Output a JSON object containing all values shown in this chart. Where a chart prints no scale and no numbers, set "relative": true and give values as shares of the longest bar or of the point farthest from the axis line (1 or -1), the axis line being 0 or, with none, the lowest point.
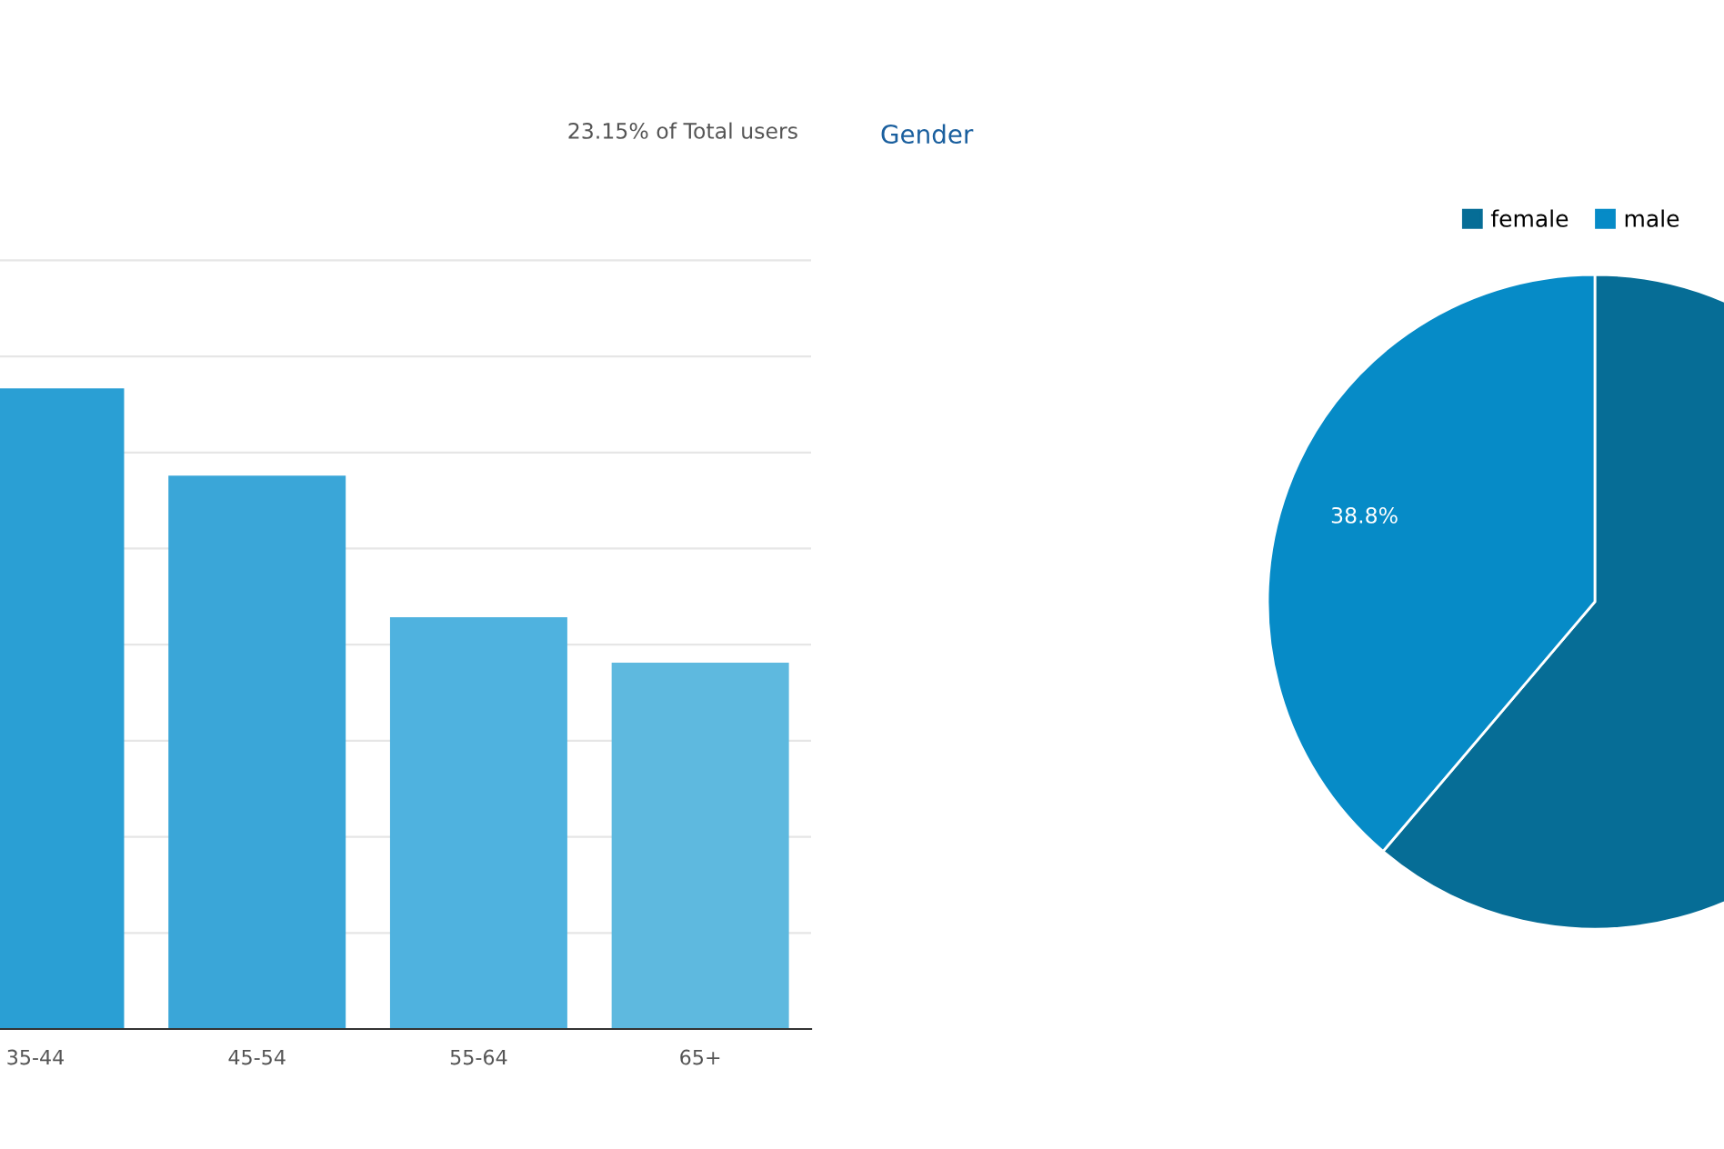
{
  "chart_data": [
    {
      "type": "bar",
      "relative": true,
      "categories": [
        "35-44",
        "45-54",
        "55-64",
        "65+"
      ],
      "values": [
        1,
        0.864,
        0.643,
        0.572
      ],
      "colors": [
        "#2a9fd4",
        "#3aa6d8",
        "#4fb2df",
        "#5eb9df"
      ],
      "grid": "y",
      "annotations": [
        "23.15% of Total users"
      ]
    },
    {
      "type": "pie",
      "title": "Gender",
      "categories": [
        "female",
        "male"
      ],
      "values": [
        61.2,
        38.8
      ],
      "colors": [
        "#066d96",
        "#068bc7"
      ],
      "value_labels": [
        null,
        "38.8%"
      ],
      "legend": "top right"
    }
  ]
}
